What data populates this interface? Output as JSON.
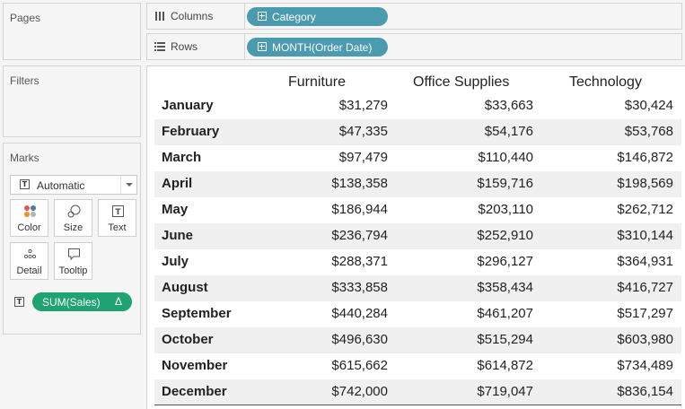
{
  "panels": {
    "pages_title": "Pages",
    "filters_title": "Filters",
    "marks_title": "Marks"
  },
  "marks": {
    "mark_type": "Automatic",
    "buttons": {
      "color": "Color",
      "size": "Size",
      "text": "Text",
      "detail": "Detail",
      "tooltip": "Tooltip"
    },
    "pill": "SUM(Sales)",
    "pill_delta": "Δ",
    "pill_color": "#1fa372"
  },
  "shelves": {
    "columns_label": "Columns",
    "columns_pill": "Category",
    "rows_label": "Rows",
    "rows_pill": "MONTH(Order Date)",
    "pill_color": "#4a9bb0"
  },
  "table": {
    "headers": [
      "Furniture",
      "Office Supplies",
      "Technology"
    ],
    "rows": [
      {
        "month": "January",
        "values": [
          "$31,279",
          "$33,663",
          "$30,424"
        ]
      },
      {
        "month": "February",
        "values": [
          "$47,335",
          "$54,176",
          "$53,768"
        ]
      },
      {
        "month": "March",
        "values": [
          "$97,479",
          "$110,440",
          "$146,872"
        ]
      },
      {
        "month": "April",
        "values": [
          "$138,358",
          "$159,716",
          "$198,569"
        ]
      },
      {
        "month": "May",
        "values": [
          "$186,944",
          "$203,110",
          "$262,712"
        ]
      },
      {
        "month": "June",
        "values": [
          "$236,794",
          "$252,910",
          "$310,144"
        ]
      },
      {
        "month": "July",
        "values": [
          "$288,371",
          "$296,127",
          "$364,931"
        ]
      },
      {
        "month": "August",
        "values": [
          "$333,858",
          "$358,434",
          "$416,727"
        ]
      },
      {
        "month": "September",
        "values": [
          "$440,284",
          "$461,207",
          "$517,297"
        ]
      },
      {
        "month": "October",
        "values": [
          "$496,630",
          "$515,294",
          "$603,980"
        ]
      },
      {
        "month": "November",
        "values": [
          "$615,662",
          "$614,872",
          "$734,489"
        ]
      },
      {
        "month": "December",
        "values": [
          "$742,000",
          "$719,047",
          "$836,154"
        ]
      }
    ]
  }
}
